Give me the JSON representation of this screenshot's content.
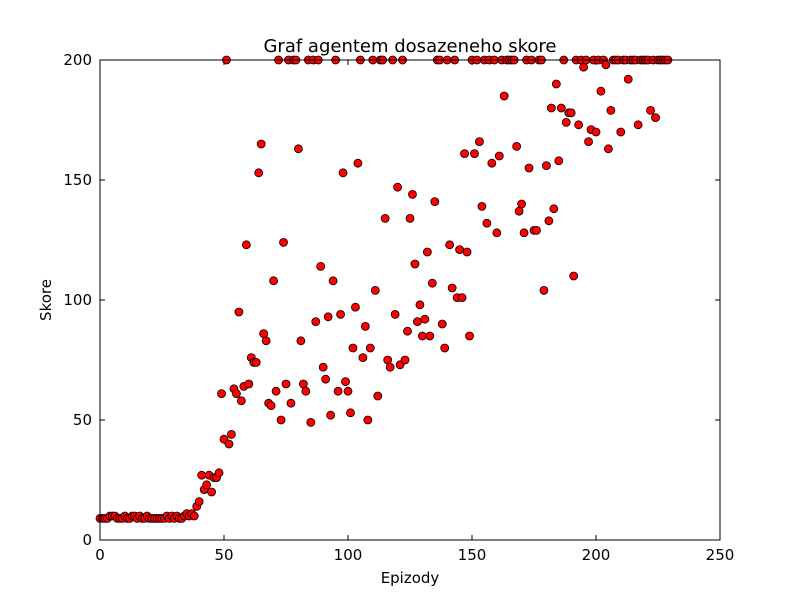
{
  "chart_data": {
    "type": "scatter",
    "title": "Graf agentem dosazeneho skore",
    "xlabel": "Epizody",
    "ylabel": "Skore",
    "xlim": [
      0,
      250
    ],
    "ylim": [
      0,
      200
    ],
    "xticks": [
      0,
      50,
      100,
      150,
      200,
      250
    ],
    "yticks": [
      0,
      50,
      100,
      150,
      200
    ],
    "grid": false,
    "legend": "none",
    "marker_color": "#ff0000",
    "marker_edge_color": "#000000",
    "series": [
      {
        "points": [
          [
            0,
            9
          ],
          [
            1,
            9
          ],
          [
            2,
            9
          ],
          [
            3,
            9
          ],
          [
            4,
            10
          ],
          [
            5,
            10
          ],
          [
            6,
            10
          ],
          [
            7,
            9
          ],
          [
            8,
            9
          ],
          [
            9,
            9
          ],
          [
            10,
            10
          ],
          [
            11,
            9
          ],
          [
            12,
            9
          ],
          [
            13,
            10
          ],
          [
            14,
            10
          ],
          [
            15,
            9
          ],
          [
            16,
            10
          ],
          [
            17,
            9
          ],
          [
            18,
            9
          ],
          [
            19,
            10
          ],
          [
            20,
            9
          ],
          [
            21,
            9
          ],
          [
            22,
            9
          ],
          [
            23,
            9
          ],
          [
            24,
            9
          ],
          [
            25,
            9
          ],
          [
            26,
            9
          ],
          [
            27,
            10
          ],
          [
            28,
            9
          ],
          [
            29,
            10
          ],
          [
            30,
            9
          ],
          [
            31,
            10
          ],
          [
            32,
            9
          ],
          [
            33,
            9
          ],
          [
            34,
            10
          ],
          [
            35,
            11
          ],
          [
            36,
            10
          ],
          [
            37,
            11
          ],
          [
            38,
            10
          ],
          [
            39,
            14
          ],
          [
            40,
            16
          ],
          [
            41,
            27
          ],
          [
            42,
            21
          ],
          [
            43,
            23
          ],
          [
            44,
            27
          ],
          [
            45,
            20
          ],
          [
            46,
            26
          ],
          [
            47,
            26
          ],
          [
            48,
            28
          ],
          [
            49,
            61
          ],
          [
            50,
            42
          ],
          [
            51,
            200
          ],
          [
            52,
            40
          ],
          [
            53,
            44
          ],
          [
            54,
            63
          ],
          [
            55,
            61
          ],
          [
            56,
            95
          ],
          [
            57,
            58
          ],
          [
            58,
            64
          ],
          [
            59,
            123
          ],
          [
            60,
            65
          ],
          [
            61,
            76
          ],
          [
            62,
            74
          ],
          [
            63,
            74
          ],
          [
            64,
            153
          ],
          [
            65,
            165
          ],
          [
            66,
            86
          ],
          [
            67,
            83
          ],
          [
            68,
            57
          ],
          [
            69,
            56
          ],
          [
            70,
            108
          ],
          [
            71,
            62
          ],
          [
            72,
            200
          ],
          [
            73,
            50
          ],
          [
            74,
            124
          ],
          [
            75,
            65
          ],
          [
            76,
            200
          ],
          [
            77,
            57
          ],
          [
            78,
            200
          ],
          [
            79,
            200
          ],
          [
            80,
            163
          ],
          [
            81,
            83
          ],
          [
            82,
            65
          ],
          [
            83,
            62
          ],
          [
            84,
            200
          ],
          [
            85,
            49
          ],
          [
            86,
            200
          ],
          [
            87,
            91
          ],
          [
            88,
            200
          ],
          [
            89,
            114
          ],
          [
            90,
            72
          ],
          [
            91,
            67
          ],
          [
            92,
            93
          ],
          [
            93,
            52
          ],
          [
            94,
            108
          ],
          [
            95,
            200
          ],
          [
            96,
            62
          ],
          [
            97,
            94
          ],
          [
            98,
            153
          ],
          [
            99,
            66
          ],
          [
            100,
            62
          ],
          [
            101,
            53
          ],
          [
            102,
            80
          ],
          [
            103,
            97
          ],
          [
            104,
            157
          ],
          [
            105,
            200
          ],
          [
            106,
            76
          ],
          [
            107,
            89
          ],
          [
            108,
            50
          ],
          [
            109,
            80
          ],
          [
            110,
            200
          ],
          [
            111,
            104
          ],
          [
            112,
            60
          ],
          [
            113,
            200
          ],
          [
            114,
            200
          ],
          [
            115,
            134
          ],
          [
            116,
            75
          ],
          [
            117,
            72
          ],
          [
            118,
            200
          ],
          [
            119,
            94
          ],
          [
            120,
            147
          ],
          [
            121,
            73
          ],
          [
            122,
            200
          ],
          [
            123,
            75
          ],
          [
            124,
            87
          ],
          [
            125,
            134
          ],
          [
            126,
            144
          ],
          [
            127,
            115
          ],
          [
            128,
            91
          ],
          [
            129,
            98
          ],
          [
            130,
            85
          ],
          [
            131,
            92
          ],
          [
            132,
            120
          ],
          [
            133,
            85
          ],
          [
            134,
            107
          ],
          [
            135,
            141
          ],
          [
            136,
            200
          ],
          [
            137,
            200
          ],
          [
            138,
            90
          ],
          [
            139,
            80
          ],
          [
            140,
            200
          ],
          [
            141,
            123
          ],
          [
            142,
            105
          ],
          [
            143,
            200
          ],
          [
            144,
            101
          ],
          [
            145,
            121
          ],
          [
            146,
            101
          ],
          [
            147,
            161
          ],
          [
            148,
            120
          ],
          [
            149,
            85
          ],
          [
            150,
            200
          ],
          [
            151,
            161
          ],
          [
            152,
            200
          ],
          [
            153,
            166
          ],
          [
            154,
            139
          ],
          [
            155,
            200
          ],
          [
            156,
            132
          ],
          [
            157,
            200
          ],
          [
            158,
            157
          ],
          [
            159,
            200
          ],
          [
            160,
            128
          ],
          [
            161,
            160
          ],
          [
            162,
            200
          ],
          [
            163,
            185
          ],
          [
            164,
            200
          ],
          [
            165,
            200
          ],
          [
            166,
            200
          ],
          [
            167,
            200
          ],
          [
            168,
            164
          ],
          [
            169,
            137
          ],
          [
            170,
            140
          ],
          [
            171,
            128
          ],
          [
            172,
            200
          ],
          [
            173,
            155
          ],
          [
            174,
            200
          ],
          [
            175,
            129
          ],
          [
            176,
            129
          ],
          [
            177,
            200
          ],
          [
            178,
            200
          ],
          [
            179,
            104
          ],
          [
            180,
            156
          ],
          [
            181,
            133
          ],
          [
            182,
            180
          ],
          [
            183,
            138
          ],
          [
            184,
            190
          ],
          [
            185,
            158
          ],
          [
            186,
            180
          ],
          [
            187,
            200
          ],
          [
            188,
            174
          ],
          [
            189,
            178
          ],
          [
            190,
            178
          ],
          [
            191,
            110
          ],
          [
            192,
            200
          ],
          [
            193,
            173
          ],
          [
            194,
            200
          ],
          [
            195,
            197
          ],
          [
            196,
            200
          ],
          [
            197,
            166
          ],
          [
            198,
            171
          ],
          [
            199,
            200
          ],
          [
            200,
            170
          ],
          [
            201,
            200
          ],
          [
            202,
            187
          ],
          [
            203,
            200
          ],
          [
            204,
            198
          ],
          [
            205,
            163
          ],
          [
            206,
            179
          ],
          [
            207,
            200
          ],
          [
            208,
            200
          ],
          [
            209,
            200
          ],
          [
            210,
            170
          ],
          [
            211,
            200
          ],
          [
            212,
            200
          ],
          [
            213,
            192
          ],
          [
            214,
            200
          ],
          [
            215,
            200
          ],
          [
            216,
            200
          ],
          [
            217,
            173
          ],
          [
            218,
            200
          ],
          [
            219,
            200
          ],
          [
            220,
            200
          ],
          [
            221,
            200
          ],
          [
            222,
            179
          ],
          [
            223,
            200
          ],
          [
            224,
            176
          ],
          [
            225,
            200
          ],
          [
            226,
            200
          ],
          [
            227,
            200
          ],
          [
            228,
            200
          ],
          [
            229,
            200
          ]
        ]
      }
    ]
  }
}
